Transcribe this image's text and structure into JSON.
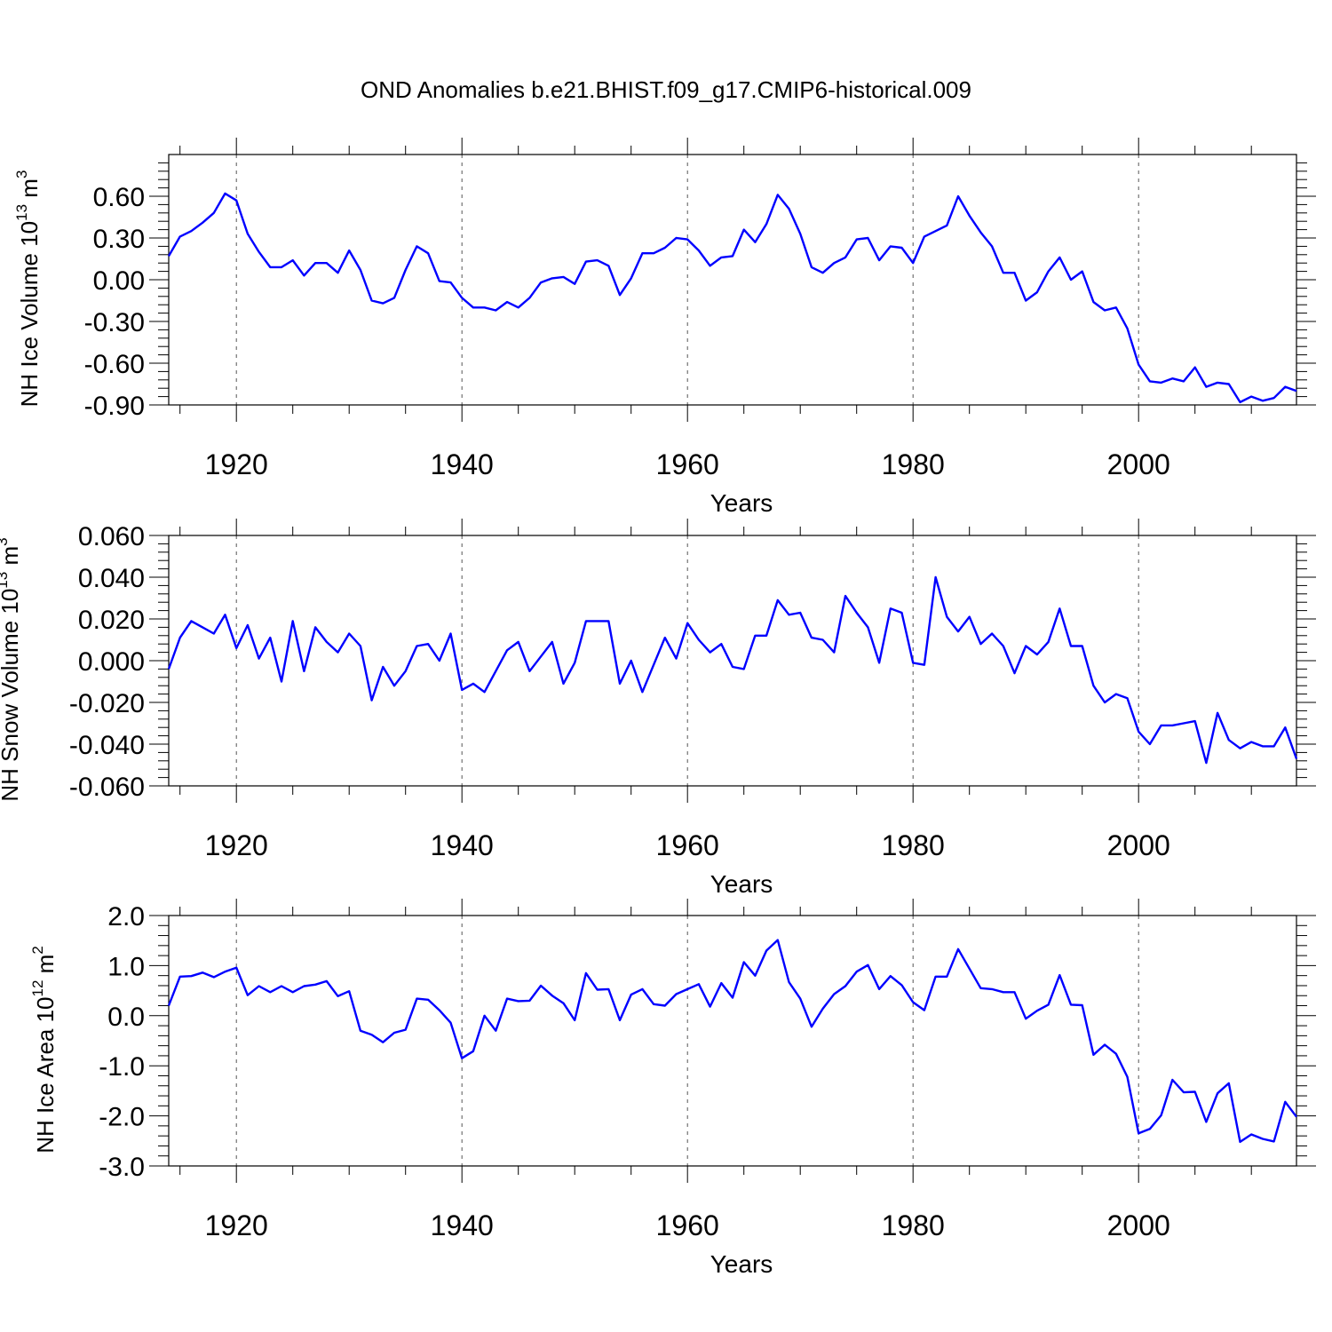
{
  "chart_data": {
    "title": "OND Anomalies b.e21.BHIST.f09_g17.CMIP6-historical.009",
    "colors": {
      "line": "#0000ff",
      "frame": "#000000",
      "grid": "#555555"
    },
    "panels": [
      {
        "type": "line",
        "ylabel": {
          "text": "NH Ice Volume 10",
          "sup1": "13",
          "mid": " m",
          "sup2": "3"
        },
        "xlabel": "Years",
        "xlim": [
          1914,
          2014
        ],
        "ylim": [
          -0.9,
          0.9
        ],
        "yticks": [
          -0.9,
          -0.6,
          -0.3,
          0.0,
          0.3,
          0.6
        ],
        "ytick_labels": [
          "-0.90",
          "-0.60",
          "-0.30",
          "0.00",
          "0.30",
          "0.60"
        ],
        "xticks": [
          1920,
          1940,
          1960,
          1980,
          2000
        ],
        "xtick_labels": [
          "1920",
          "1940",
          "1960",
          "1980",
          "2000"
        ],
        "series": [
          {
            "name": "NH Ice Volume",
            "x_start": 1914,
            "values": [
              0.17,
              0.31,
              0.35,
              0.41,
              0.48,
              0.62,
              0.57,
              0.33,
              0.2,
              0.09,
              0.09,
              0.14,
              0.03,
              0.12,
              0.12,
              0.05,
              0.21,
              0.07,
              -0.15,
              -0.17,
              -0.13,
              0.07,
              0.24,
              0.19,
              -0.01,
              -0.02,
              -0.13,
              -0.2,
              -0.2,
              -0.22,
              -0.16,
              -0.2,
              -0.13,
              -0.02,
              0.01,
              0.02,
              -0.03,
              0.13,
              0.14,
              0.1,
              -0.11,
              0.01,
              0.19,
              0.19,
              0.23,
              0.3,
              0.29,
              0.21,
              0.1,
              0.16,
              0.17,
              0.36,
              0.27,
              0.4,
              0.61,
              0.51,
              0.33,
              0.09,
              0.05,
              0.12,
              0.16,
              0.29,
              0.3,
              0.14,
              0.24,
              0.23,
              0.12,
              0.31,
              0.35,
              0.39,
              0.6,
              0.46,
              0.34,
              0.24,
              0.05,
              0.05,
              -0.15,
              -0.09,
              0.06,
              0.16,
              0.0,
              0.06,
              -0.16,
              -0.22,
              -0.2,
              -0.35,
              -0.61,
              -0.73,
              -0.74,
              -0.71,
              -0.73,
              -0.63,
              -0.77,
              -0.74,
              -0.75,
              -0.88,
              -0.84,
              -0.87,
              -0.85,
              -0.77,
              -0.8
            ]
          }
        ]
      },
      {
        "type": "line",
        "ylabel": {
          "text": "NH Snow Volume 10",
          "sup1": "13",
          "mid": " m",
          "sup2": "3"
        },
        "xlabel": "Years",
        "xlim": [
          1914,
          2014
        ],
        "ylim": [
          -0.06,
          0.06
        ],
        "yticks": [
          -0.06,
          -0.04,
          -0.02,
          0.0,
          0.02,
          0.04,
          0.06
        ],
        "ytick_labels": [
          "-0.060",
          "-0.040",
          "-0.020",
          "0.000",
          "0.020",
          "0.040",
          "0.060"
        ],
        "xticks": [
          1920,
          1940,
          1960,
          1980,
          2000
        ],
        "xtick_labels": [
          "1920",
          "1940",
          "1960",
          "1980",
          "2000"
        ],
        "series": [
          {
            "name": "NH Snow Volume",
            "x_start": 1914,
            "values": [
              -0.004,
              0.011,
              0.019,
              0.016,
              0.013,
              0.022,
              0.006,
              0.017,
              0.001,
              0.011,
              -0.01,
              0.019,
              -0.005,
              0.016,
              0.009,
              0.004,
              0.013,
              0.007,
              -0.019,
              -0.003,
              -0.012,
              -0.005,
              0.007,
              0.008,
              0.0,
              0.013,
              -0.014,
              -0.011,
              -0.015,
              -0.005,
              0.005,
              0.009,
              -0.005,
              0.002,
              0.009,
              -0.011,
              -0.001,
              0.019,
              0.019,
              0.019,
              -0.011,
              0.0,
              -0.015,
              -0.002,
              0.011,
              0.001,
              0.018,
              0.01,
              0.004,
              0.008,
              -0.003,
              -0.004,
              0.012,
              0.012,
              0.029,
              0.022,
              0.023,
              0.011,
              0.01,
              0.004,
              0.031,
              0.023,
              0.016,
              -0.001,
              0.025,
              0.023,
              -0.001,
              -0.002,
              0.04,
              0.021,
              0.014,
              0.021,
              0.008,
              0.013,
              0.007,
              -0.006,
              0.007,
              0.003,
              0.009,
              0.025,
              0.007,
              0.007,
              -0.012,
              -0.02,
              -0.016,
              -0.018,
              -0.034,
              -0.04,
              -0.031,
              -0.031,
              -0.03,
              -0.029,
              -0.049,
              -0.025,
              -0.038,
              -0.042,
              -0.039,
              -0.041,
              -0.041,
              -0.032,
              -0.047
            ]
          }
        ]
      },
      {
        "type": "line",
        "ylabel": {
          "text": "NH Ice Area 10",
          "sup1": "12",
          "mid": " m",
          "sup2": "2"
        },
        "xlabel": "Years",
        "xlim": [
          1914,
          2014
        ],
        "ylim": [
          -3.0,
          2.0
        ],
        "yticks": [
          -3.0,
          -2.0,
          -1.0,
          0.0,
          1.0,
          2.0
        ],
        "ytick_labels": [
          "-3.0",
          "-2.0",
          "-1.0",
          "0.0",
          "1.0",
          "2.0"
        ],
        "xticks": [
          1920,
          1940,
          1960,
          1980,
          2000
        ],
        "xtick_labels": [
          "1920",
          "1940",
          "1960",
          "1980",
          "2000"
        ],
        "series": [
          {
            "name": "NH Ice Area",
            "x_start": 1914,
            "values": [
              0.2,
              0.78,
              0.79,
              0.86,
              0.77,
              0.88,
              0.96,
              0.41,
              0.59,
              0.47,
              0.59,
              0.47,
              0.59,
              0.62,
              0.69,
              0.39,
              0.49,
              -0.3,
              -0.38,
              -0.53,
              -0.34,
              -0.28,
              0.34,
              0.32,
              0.11,
              -0.14,
              -0.85,
              -0.71,
              0.0,
              -0.3,
              0.34,
              0.29,
              0.3,
              0.6,
              0.4,
              0.25,
              -0.09,
              0.85,
              0.52,
              0.53,
              -0.09,
              0.42,
              0.53,
              0.23,
              0.2,
              0.43,
              0.53,
              0.63,
              0.18,
              0.65,
              0.36,
              1.07,
              0.8,
              1.3,
              1.51,
              0.67,
              0.34,
              -0.22,
              0.14,
              0.43,
              0.59,
              0.88,
              1.01,
              0.53,
              0.79,
              0.61,
              0.27,
              0.11,
              0.78,
              0.78,
              1.33,
              0.94,
              0.55,
              0.53,
              0.47,
              0.47,
              -0.06,
              0.1,
              0.22,
              0.81,
              0.22,
              0.21,
              -0.78,
              -0.58,
              -0.76,
              -1.22,
              -2.35,
              -2.26,
              -1.99,
              -1.28,
              -1.53,
              -1.52,
              -2.12,
              -1.55,
              -1.35,
              -2.52,
              -2.37,
              -2.46,
              -2.51,
              -1.72,
              -2.02
            ]
          }
        ]
      }
    ]
  }
}
